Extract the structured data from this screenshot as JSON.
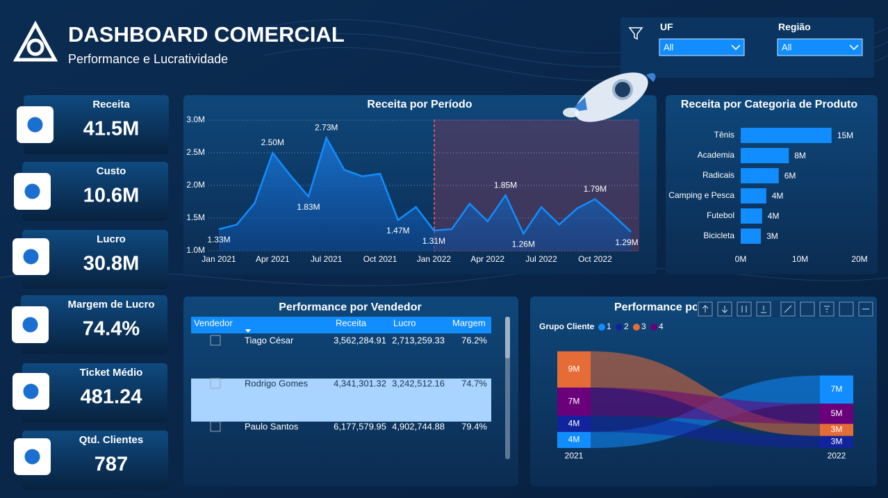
{
  "header": {
    "title": "DASHBOARD COMERCIAL",
    "subtitle": "Performance e Lucratividade"
  },
  "filters": [
    {
      "label": "UF",
      "value": "All"
    },
    {
      "label": "Região",
      "value": "All"
    }
  ],
  "kpis": [
    {
      "label": "Receita",
      "value": "41.5M"
    },
    {
      "label": "Custo",
      "value": "10.6M"
    },
    {
      "label": "Lucro",
      "value": "30.8M"
    },
    {
      "label": "Margem de Lucro",
      "value": "74.4%"
    },
    {
      "label": "Ticket Médio",
      "value": "481.24"
    },
    {
      "label": "Qtd. Clientes",
      "value": "787"
    }
  ],
  "chart_data": [
    {
      "type": "area",
      "title": "Receita por Período",
      "categories": [
        "Jan 2021",
        null,
        null,
        "Apr 2021",
        null,
        null,
        "Jul 2021",
        null,
        null,
        "Oct 2021",
        null,
        null,
        "Jan 2022",
        null,
        null,
        "Apr 2022",
        null,
        null,
        "Jul 2022",
        null,
        null,
        "Oct 2022",
        null,
        null
      ],
      "values": [
        1.33,
        1.4,
        1.73,
        2.5,
        2.15,
        1.83,
        2.73,
        2.24,
        2.14,
        2.18,
        1.47,
        1.67,
        1.31,
        1.33,
        1.72,
        1.45,
        1.85,
        1.26,
        1.67,
        1.4,
        1.65,
        1.79,
        1.55,
        1.29
      ],
      "value_labels": [
        "1.33M",
        null,
        null,
        "2.50M",
        null,
        "1.83M",
        "2.73M",
        null,
        null,
        null,
        "1.47M",
        null,
        "1.31M",
        null,
        null,
        null,
        "1.85M",
        "1.26M",
        null,
        null,
        null,
        "1.79M",
        null,
        "1.29M"
      ],
      "color": "#118DFF",
      "ylim": [
        1.0,
        3.0
      ],
      "yticks": [
        {
          "value": 1.0,
          "label": "1.0M"
        },
        {
          "value": 1.5,
          "label": "1.5M"
        },
        {
          "value": 2.0,
          "label": "2.0M"
        },
        {
          "value": 2.5,
          "label": "2.5M"
        },
        {
          "value": 3.0,
          "label": "3.0M"
        }
      ],
      "grid": true
    },
    {
      "type": "hbar",
      "title": "Receita por Categoria de Produto",
      "categories": [
        "Tênis",
        "Academia",
        "Radicais",
        "Camping e Pesca",
        "Futebol",
        "Bicicleta"
      ],
      "values": [
        15.3,
        8.1,
        6.4,
        4.3,
        3.6,
        3.4
      ],
      "value_labels": [
        "15M",
        "8M",
        "6M",
        "4M",
        "4M",
        "3M"
      ],
      "color": "#118DFF",
      "xlim": [
        0,
        20
      ],
      "xticks": [
        {
          "value": 0,
          "label": "0M"
        },
        {
          "value": 10,
          "label": "10M"
        },
        {
          "value": 20,
          "label": "20M"
        }
      ]
    },
    {
      "type": "ribbon",
      "title": "Performance por Grupo Cliente",
      "legend_title": "Grupo Cliente",
      "categories": [
        "2021",
        "2022"
      ],
      "series": [
        {
          "name": "1",
          "color": "#118DFF",
          "values": [
            4,
            7
          ],
          "value_labels": [
            "4M",
            "7M"
          ]
        },
        {
          "name": "2",
          "color": "#12239E",
          "values": [
            4,
            3
          ],
          "value_labels": [
            "4M",
            "3M"
          ]
        },
        {
          "name": "3",
          "color": "#E66C37",
          "values": [
            9,
            3
          ],
          "value_labels": [
            "9M",
            "3M"
          ]
        },
        {
          "name": "4",
          "color": "#6B007B",
          "values": [
            7,
            5
          ],
          "value_labels": [
            "7M",
            "5M"
          ]
        }
      ]
    }
  ],
  "table": {
    "title": "Performance por Vendedor",
    "columns": [
      "Vendedor",
      "Receita",
      "Lucro",
      "Margem"
    ],
    "rows": [
      [
        "Tiago César",
        "3,562,284.91",
        "2,713,259.33",
        "76.2%"
      ],
      [
        "Rodrigo Gomes",
        "4,341,301.32",
        "3,242,512.16",
        "74.7%"
      ],
      [
        "Paulo Santos",
        "6,177,579.95",
        "4,902,744.88",
        "79.4%"
      ]
    ],
    "selected_row": 1
  }
}
